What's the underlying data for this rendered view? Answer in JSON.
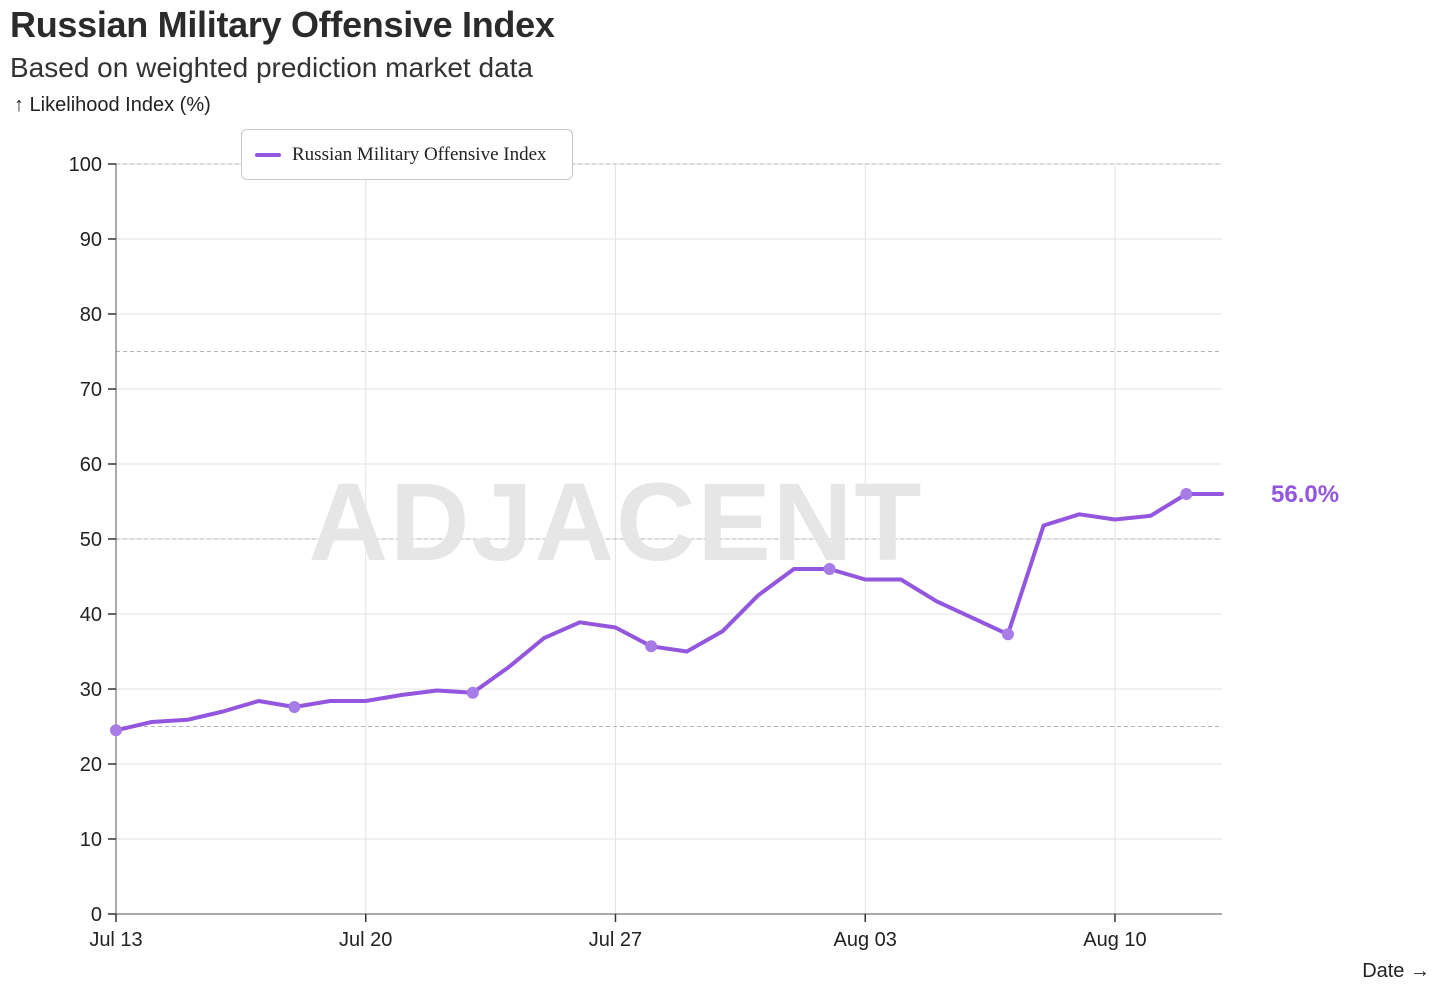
{
  "chart_data": {
    "type": "line",
    "title": "Russian Military Offensive Index",
    "subtitle": "Based on weighted prediction market data",
    "ylabel": "↑ Likelihood Index (%)",
    "xlabel": "Date →",
    "ylim": [
      0,
      100
    ],
    "yticks": [
      "0",
      "10",
      "20",
      "30",
      "40",
      "50",
      "60",
      "70",
      "80",
      "90",
      "100"
    ],
    "xlim_days": [
      0,
      31
    ],
    "xticks": [
      {
        "label": "Jul 13",
        "day": 0
      },
      {
        "label": "Jul 20",
        "day": 7
      },
      {
        "label": "Jul 27",
        "day": 14
      },
      {
        "label": "Aug 03",
        "day": 21
      },
      {
        "label": "Aug 10",
        "day": 28
      }
    ],
    "reference_lines": [
      25,
      50,
      75,
      100
    ],
    "watermark": "ADJACENT",
    "legend": {
      "position": "top-left"
    },
    "series": [
      {
        "name": "Russian Military Offensive Index",
        "color": "#9356DF",
        "end_label": "56.0%",
        "x": [
          0,
          1,
          2,
          3,
          4,
          5,
          6,
          7,
          8,
          9,
          10,
          11,
          12,
          13,
          14,
          15,
          16,
          17,
          18,
          19,
          20,
          21,
          22,
          23,
          24,
          25,
          26,
          27,
          28,
          29,
          30,
          31
        ],
        "values": [
          24.5,
          25.6,
          25.9,
          27.0,
          28.4,
          27.6,
          28.4,
          28.4,
          29.2,
          29.8,
          29.5,
          32.9,
          36.8,
          38.9,
          38.2,
          35.7,
          35.0,
          37.7,
          42.5,
          46.0,
          46.0,
          44.6,
          44.6,
          41.7,
          39.5,
          37.3,
          51.8,
          53.3,
          52.6,
          53.1,
          56.0,
          56.0
        ],
        "markers": [
          0,
          5,
          10,
          15,
          20,
          25,
          30
        ]
      }
    ]
  }
}
